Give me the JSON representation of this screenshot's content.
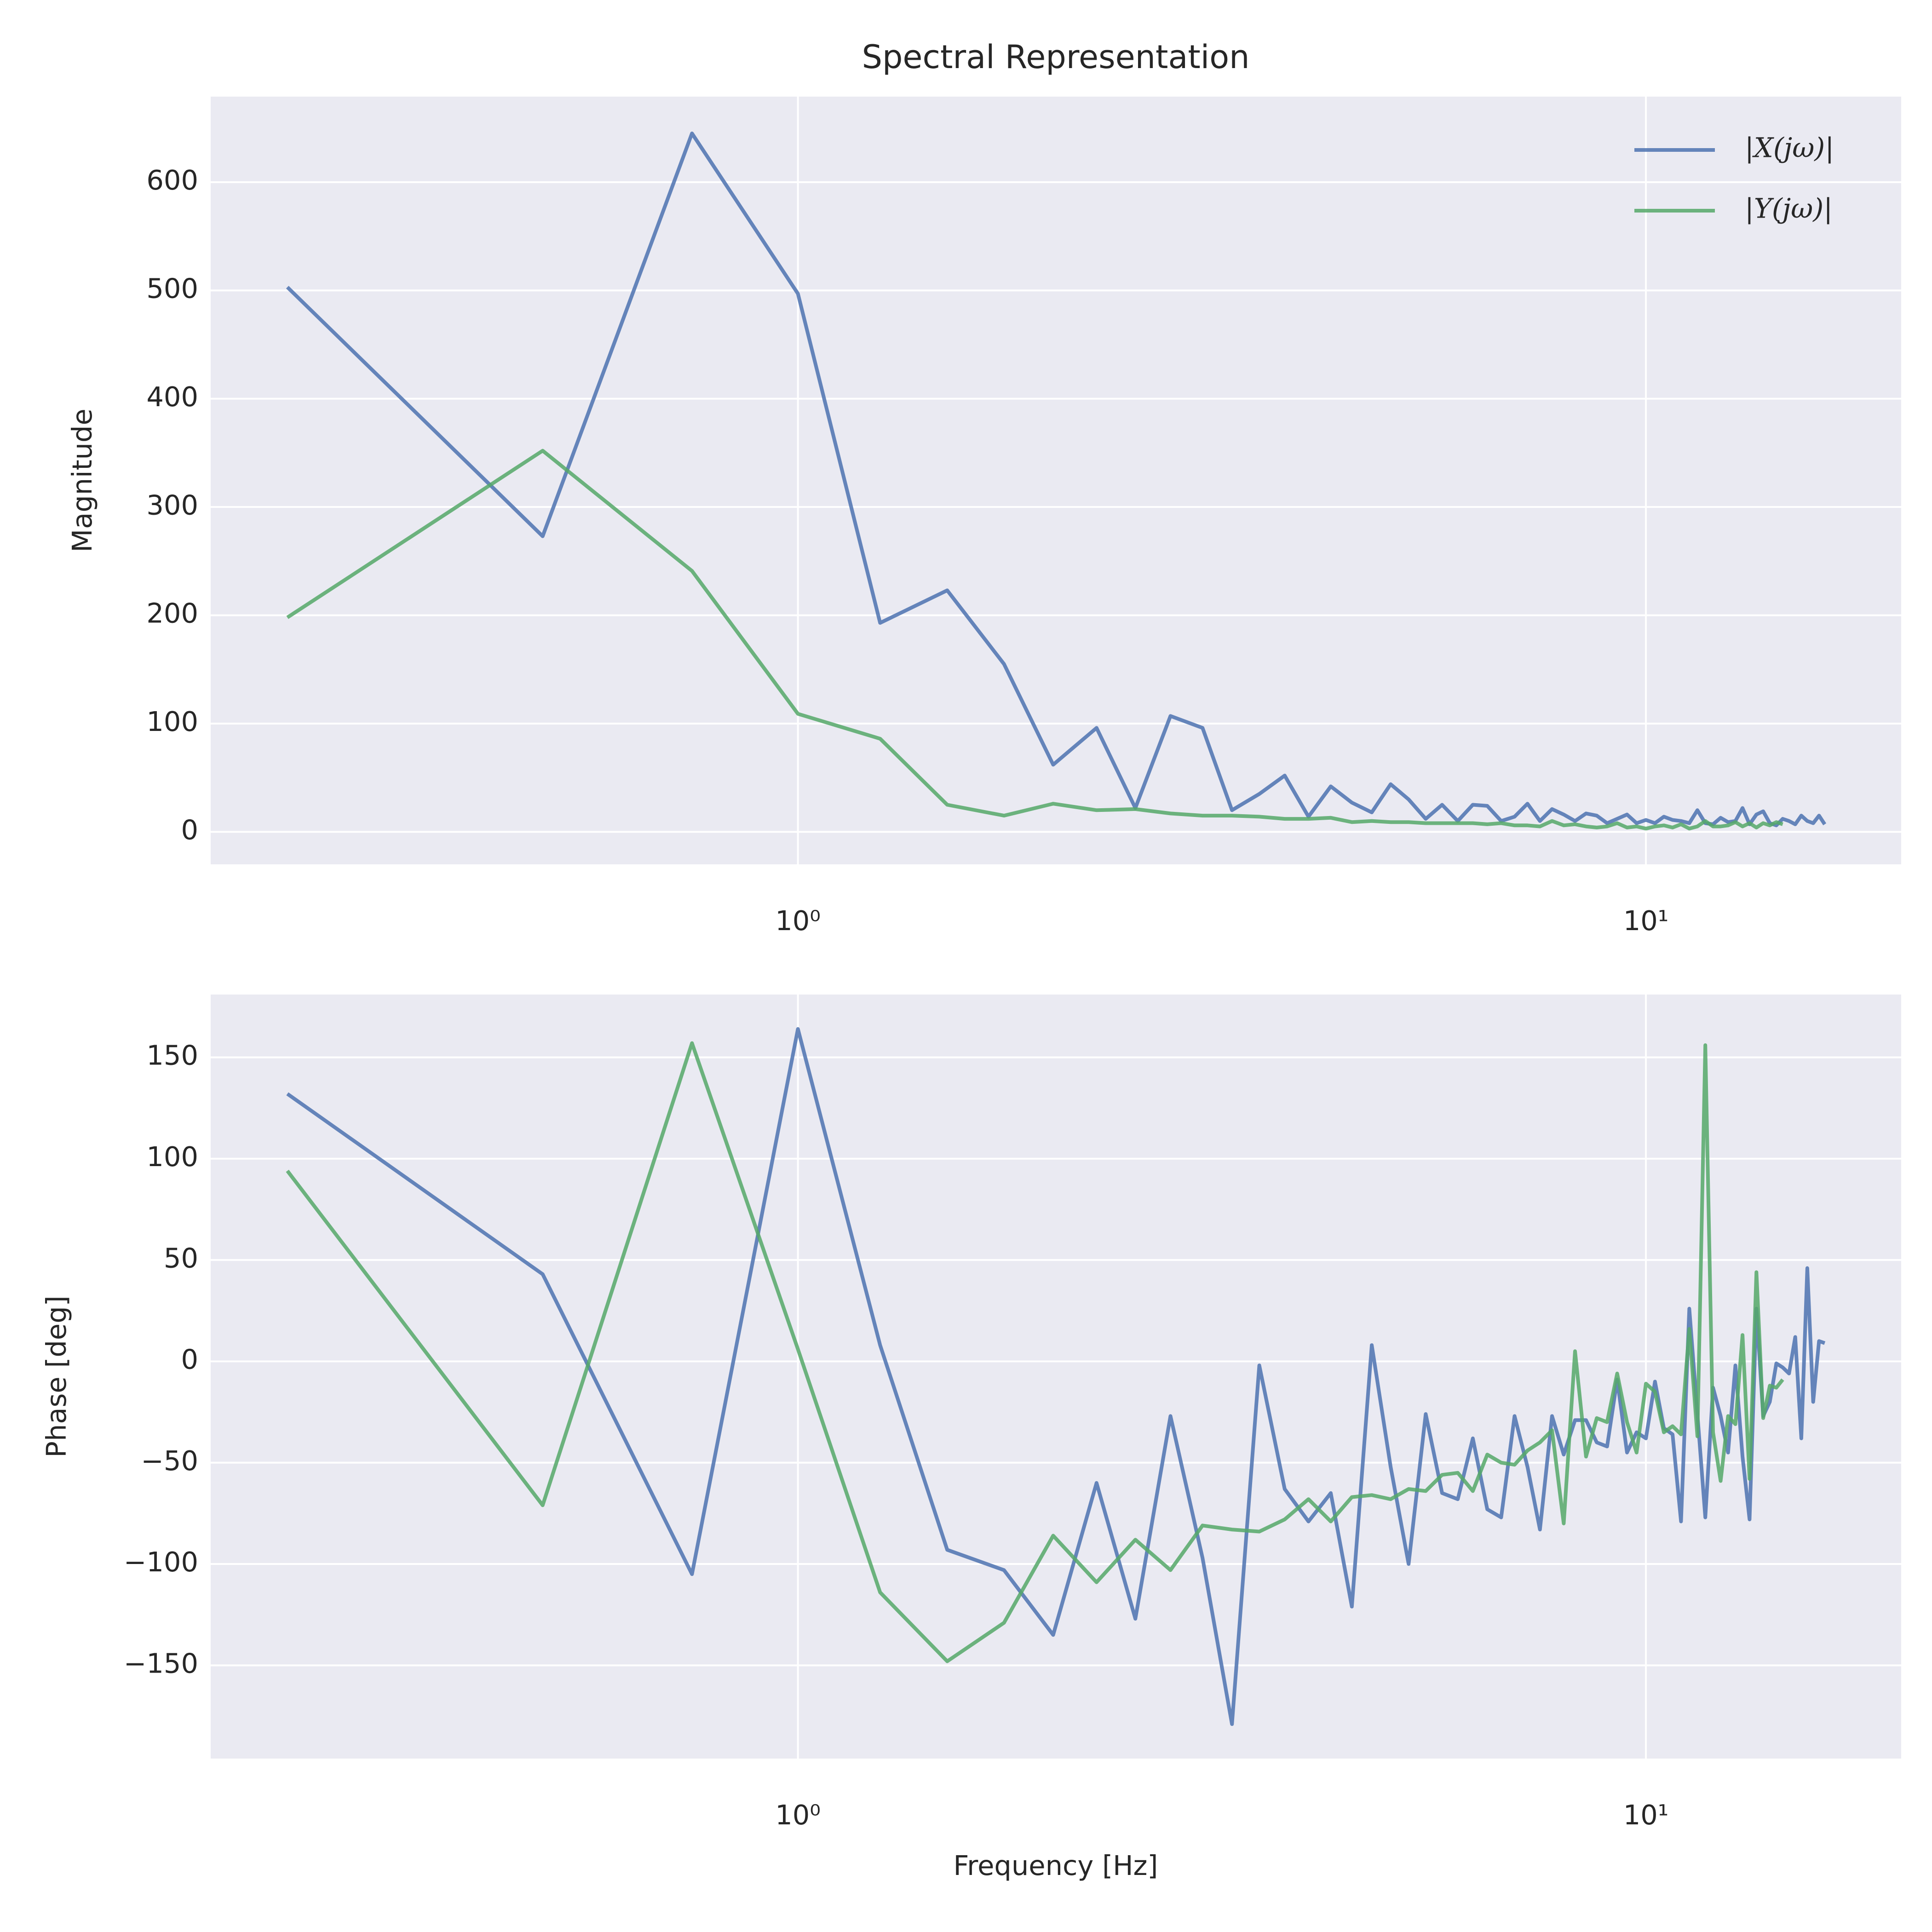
{
  "chart_data": [
    {
      "type": "line",
      "title": "Spectral Representation",
      "ylabel": "Magnitude",
      "xscale": "log",
      "grid": true,
      "legend": "upper right",
      "xlim": [
        0.203,
        20.0
      ],
      "xticks": [
        {
          "value": 1,
          "label": "10⁰"
        },
        {
          "value": 10,
          "label": "10¹"
        }
      ],
      "ylim": [
        -30,
        679
      ],
      "yticks": [
        0,
        100,
        200,
        300,
        400,
        500,
        600
      ],
      "series": [
        {
          "name": "|X(jω)|",
          "color": "#4c72b0",
          "x": [
            0.25,
            0.5,
            0.75,
            1,
            1.25,
            1.5,
            1.75,
            2,
            2.25,
            2.5,
            2.75,
            3,
            3.25,
            3.5,
            3.75,
            4,
            4.25,
            4.5,
            4.75,
            5,
            5.25,
            5.5,
            5.75,
            6,
            6.25,
            6.5,
            6.75,
            7,
            7.25,
            7.5,
            7.75,
            8,
            8.25,
            8.5,
            8.75,
            9,
            9.25,
            9.5,
            9.75,
            10,
            10.25,
            10.5,
            10.75,
            11,
            11.25,
            11.5,
            11.75,
            12,
            12.25,
            12.5,
            12.75,
            13,
            13.25,
            13.5,
            13.75,
            14,
            14.25,
            14.5,
            14.75,
            15,
            15.25,
            15.5,
            15.75,
            16,
            16.25
          ],
          "values": [
            503,
            273,
            645,
            497,
            193,
            223,
            155,
            62,
            96,
            22,
            107,
            96,
            20,
            35,
            52,
            14,
            42,
            27,
            18,
            44,
            30,
            12,
            25,
            10,
            25,
            24,
            10,
            14,
            26,
            10,
            21,
            16,
            10,
            17,
            15,
            8,
            12,
            16,
            8,
            11,
            8,
            14,
            11,
            10,
            8,
            20,
            8,
            7,
            13,
            9,
            10,
            22,
            7,
            16,
            19,
            8,
            6,
            12,
            10,
            7,
            15,
            10,
            8,
            15,
            7
          ]
        },
        {
          "name": "|Y(jω)|",
          "color": "#55a868",
          "x": [
            0.25,
            0.5,
            0.75,
            1,
            1.25,
            1.5,
            1.75,
            2,
            2.25,
            2.5,
            2.75,
            3,
            3.25,
            3.5,
            3.75,
            4,
            4.25,
            4.5,
            4.75,
            5,
            5.25,
            5.5,
            5.75,
            6,
            6.25,
            6.5,
            6.75,
            7,
            7.25,
            7.5,
            7.75,
            8,
            8.25,
            8.5,
            8.75,
            9,
            9.25,
            9.5,
            9.75,
            10,
            10.25,
            10.5,
            10.75,
            11,
            11.25,
            11.5,
            11.75,
            12,
            12.25,
            12.5,
            12.75,
            13,
            13.25,
            13.5,
            13.75,
            14,
            14.25,
            14.5
          ],
          "values": [
            198,
            352,
            241,
            109,
            86,
            25,
            15,
            26,
            20,
            21,
            17,
            15,
            15,
            14,
            12,
            12,
            13,
            9,
            10,
            9,
            9,
            8,
            8,
            8,
            8,
            7,
            8,
            6,
            6,
            5,
            10,
            6,
            7,
            5,
            4,
            5,
            8,
            4,
            5,
            3,
            5,
            6,
            4,
            7,
            3,
            5,
            10,
            5,
            5,
            6,
            9,
            5,
            8,
            4,
            8,
            6,
            9,
            7
          ]
        }
      ]
    },
    {
      "type": "line",
      "ylabel": "Phase [deg]",
      "xlabel": "Frequency [Hz]",
      "xscale": "log",
      "grid": true,
      "xlim": [
        0.203,
        20.0
      ],
      "xticks": [
        {
          "value": 1,
          "label": "10⁰"
        },
        {
          "value": 10,
          "label": "10¹"
        }
      ],
      "ylim": [
        -196,
        181
      ],
      "yticks": [
        {
          "value": -150,
          "label": "−150"
        },
        {
          "value": -100,
          "label": "−100"
        },
        {
          "value": -50,
          "label": "−50"
        },
        0,
        50,
        100,
        150
      ],
      "series": [
        {
          "color": "#4c72b0",
          "x": [
            0.25,
            0.5,
            0.75,
            1,
            1.25,
            1.5,
            1.75,
            2,
            2.25,
            2.5,
            2.75,
            3,
            3.25,
            3.5,
            3.75,
            4,
            4.25,
            4.5,
            4.75,
            5,
            5.25,
            5.5,
            5.75,
            6,
            6.25,
            6.5,
            6.75,
            7,
            7.25,
            7.5,
            7.75,
            8,
            8.25,
            8.5,
            8.75,
            9,
            9.25,
            9.5,
            9.75,
            10,
            10.25,
            10.5,
            10.75,
            11,
            11.25,
            11.5,
            11.75,
            12,
            12.25,
            12.5,
            12.75,
            13,
            13.25,
            13.5,
            13.75,
            14,
            14.25,
            14.5,
            14.75,
            15,
            15.25,
            15.5,
            15.75,
            16,
            16.25
          ],
          "values": [
            132,
            43,
            -105,
            164,
            8,
            -93,
            -103,
            -135,
            -60,
            -127,
            -27,
            -97,
            -179,
            -2,
            -63,
            -79,
            -65,
            -121,
            8,
            -52,
            -100,
            -26,
            -65,
            -68,
            -38,
            -73,
            -77,
            -27,
            -52,
            -83,
            -27,
            -46,
            -29,
            -29,
            -40,
            -42,
            -9,
            -45,
            -35,
            -38,
            -10,
            -33,
            -36,
            -79,
            26,
            -26,
            -77,
            -13,
            -27,
            -45,
            -2,
            -47,
            -78,
            26,
            -27,
            -20,
            -1,
            -3,
            -6,
            12,
            -38,
            46,
            -20,
            10,
            9
          ]
        },
        {
          "color": "#55a868",
          "x": [
            0.25,
            0.5,
            0.75,
            1,
            1.25,
            1.5,
            1.75,
            2,
            2.25,
            2.5,
            2.75,
            3,
            3.25,
            3.5,
            3.75,
            4,
            4.25,
            4.5,
            4.75,
            5,
            5.25,
            5.5,
            5.75,
            6,
            6.25,
            6.5,
            6.75,
            7,
            7.25,
            7.5,
            7.75,
            8,
            8.25,
            8.5,
            8.75,
            9,
            9.25,
            9.5,
            9.75,
            10,
            10.25,
            10.5,
            10.75,
            11,
            11.25,
            11.5,
            11.75,
            12,
            12.25,
            12.5,
            12.75,
            13,
            13.25,
            13.5,
            13.75,
            14,
            14.25,
            14.5
          ],
          "values": [
            94,
            -71,
            157,
            6,
            -114,
            -148,
            -129,
            -86,
            -109,
            -88,
            -103,
            -81,
            -83,
            -84,
            -78,
            -68,
            -79,
            -67,
            -66,
            -68,
            -63,
            -64,
            -56,
            -55,
            -64,
            -46,
            -50,
            -51,
            -44,
            -40,
            -34,
            -80,
            5,
            -47,
            -28,
            -30,
            -6,
            -30,
            -45,
            -11,
            -15,
            -35,
            -32,
            -36,
            16,
            -37,
            156,
            -35,
            -59,
            -27,
            -31,
            13,
            -58,
            44,
            -28,
            -12,
            -13,
            -9
          ]
        }
      ]
    }
  ]
}
